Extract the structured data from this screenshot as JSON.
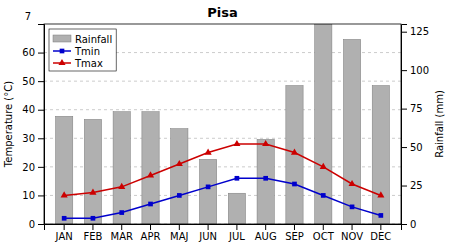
{
  "chart_data": {
    "type": "bar",
    "title": "Pisa",
    "categories": [
      "JAN",
      "FEB",
      "MAR",
      "APR",
      "MAJ",
      "JUN",
      "JUL",
      "AUG",
      "SEP",
      "OCT",
      "NOV",
      "DEC"
    ],
    "series": [
      {
        "name": "Rainfall",
        "type": "bar",
        "axis": "y2",
        "color": "#b0b0b0",
        "values": [
          70,
          68,
          73,
          73,
          62,
          42,
          20,
          55,
          90,
          130,
          120,
          90
        ]
      },
      {
        "name": "Tmin",
        "type": "line",
        "color": "#0000cc",
        "marker": "square",
        "line_style": "solid",
        "values": [
          2,
          2,
          4,
          7,
          10,
          13,
          16,
          16,
          14,
          10,
          6,
          3
        ]
      },
      {
        "name": "Tmax",
        "type": "line",
        "color": "#cc0000",
        "marker": "triangle",
        "line_style": "solid",
        "values": [
          10,
          11,
          13,
          17,
          21,
          25,
          28,
          28,
          25,
          20,
          14,
          10
        ]
      }
    ],
    "ylabel": "Temperature (°C)",
    "y2label": "Rainfall (mm)",
    "ylim": [
      0,
      70
    ],
    "yticks": [
      0,
      10,
      20,
      30,
      40,
      50,
      60
    ],
    "y2lim": [
      0,
      130
    ],
    "y2ticks": [
      0,
      25,
      50,
      75,
      100,
      125
    ],
    "grid": true,
    "legend": "upper left",
    "annotations": [
      "7"
    ]
  }
}
